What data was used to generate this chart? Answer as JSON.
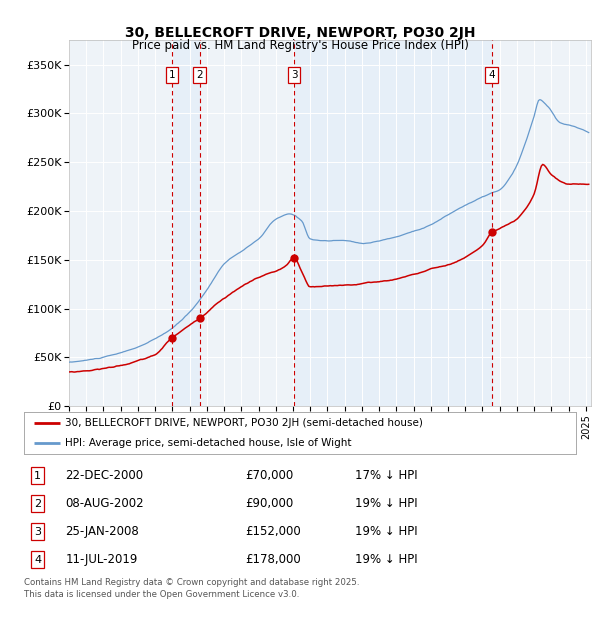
{
  "title_line1": "30, BELLECROFT DRIVE, NEWPORT, PO30 2JH",
  "title_line2": "Price paid vs. HM Land Registry's House Price Index (HPI)",
  "legend_line1": "30, BELLECROFT DRIVE, NEWPORT, PO30 2JH (semi-detached house)",
  "legend_line2": "HPI: Average price, semi-detached house, Isle of Wight",
  "transactions": [
    {
      "num": 1,
      "date": "22-DEC-2000",
      "price": 70000,
      "hpi_pct": "17% ↓ HPI"
    },
    {
      "num": 2,
      "date": "08-AUG-2002",
      "price": 90000,
      "hpi_pct": "19% ↓ HPI"
    },
    {
      "num": 3,
      "date": "25-JAN-2008",
      "price": 152000,
      "hpi_pct": "19% ↓ HPI"
    },
    {
      "num": 4,
      "date": "11-JUL-2019",
      "price": 178000,
      "hpi_pct": "19% ↓ HPI"
    }
  ],
  "transaction_dates_decimal": [
    2000.97,
    2002.58,
    2008.07,
    2019.53
  ],
  "transaction_prices": [
    70000,
    90000,
    152000,
    178000
  ],
  "hpi_color": "#6699cc",
  "price_color": "#cc0000",
  "vline_color": "#cc0000",
  "bg_shade_color": "#d8e8f8",
  "ylim": [
    0,
    375000
  ],
  "yticks": [
    0,
    50000,
    100000,
    150000,
    200000,
    250000,
    300000,
    350000
  ],
  "ytick_labels": [
    "£0",
    "£50K",
    "£100K",
    "£150K",
    "£200K",
    "£250K",
    "£300K",
    "£350K"
  ],
  "footer": "Contains HM Land Registry data © Crown copyright and database right 2025.\nThis data is licensed under the Open Government Licence v3.0."
}
